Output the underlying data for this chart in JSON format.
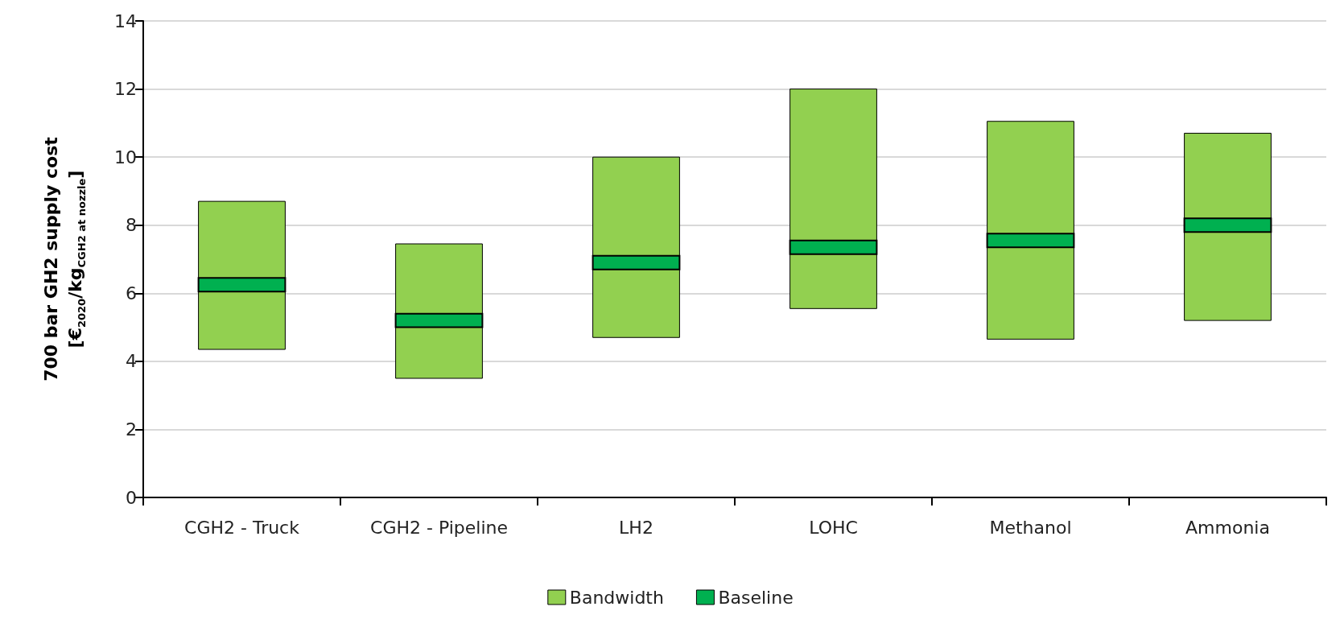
{
  "chart_data": {
    "type": "bar",
    "ylabel": "700 bar GH2 supply cost\n[€$_{2020}$/kg$_{CGH2 at nozzle}$]",
    "categories": [
      "CGH2 - Truck",
      "CGH2 - Pipeline",
      "LH2",
      "LOHC",
      "Methanol",
      "Ammonia"
    ],
    "series": [
      {
        "name": "Bandwidth",
        "color": "#92d050",
        "base": [
          4.35,
          3.5,
          4.7,
          5.55,
          4.65,
          5.2
        ],
        "values": [
          4.35,
          3.95,
          5.3,
          6.45,
          6.4,
          5.5
        ]
      },
      {
        "name": "Baseline",
        "color": "#00b050",
        "base": [
          6.05,
          5.0,
          6.7,
          7.15,
          7.35,
          7.8
        ],
        "values": [
          0.4,
          0.4,
          0.4,
          0.4,
          0.4,
          0.4
        ]
      }
    ],
    "ylim": [
      0,
      14
    ],
    "yticks": [
      0,
      2,
      4,
      6,
      8,
      10,
      12,
      14
    ],
    "grid": "y",
    "legend": "bottom"
  }
}
